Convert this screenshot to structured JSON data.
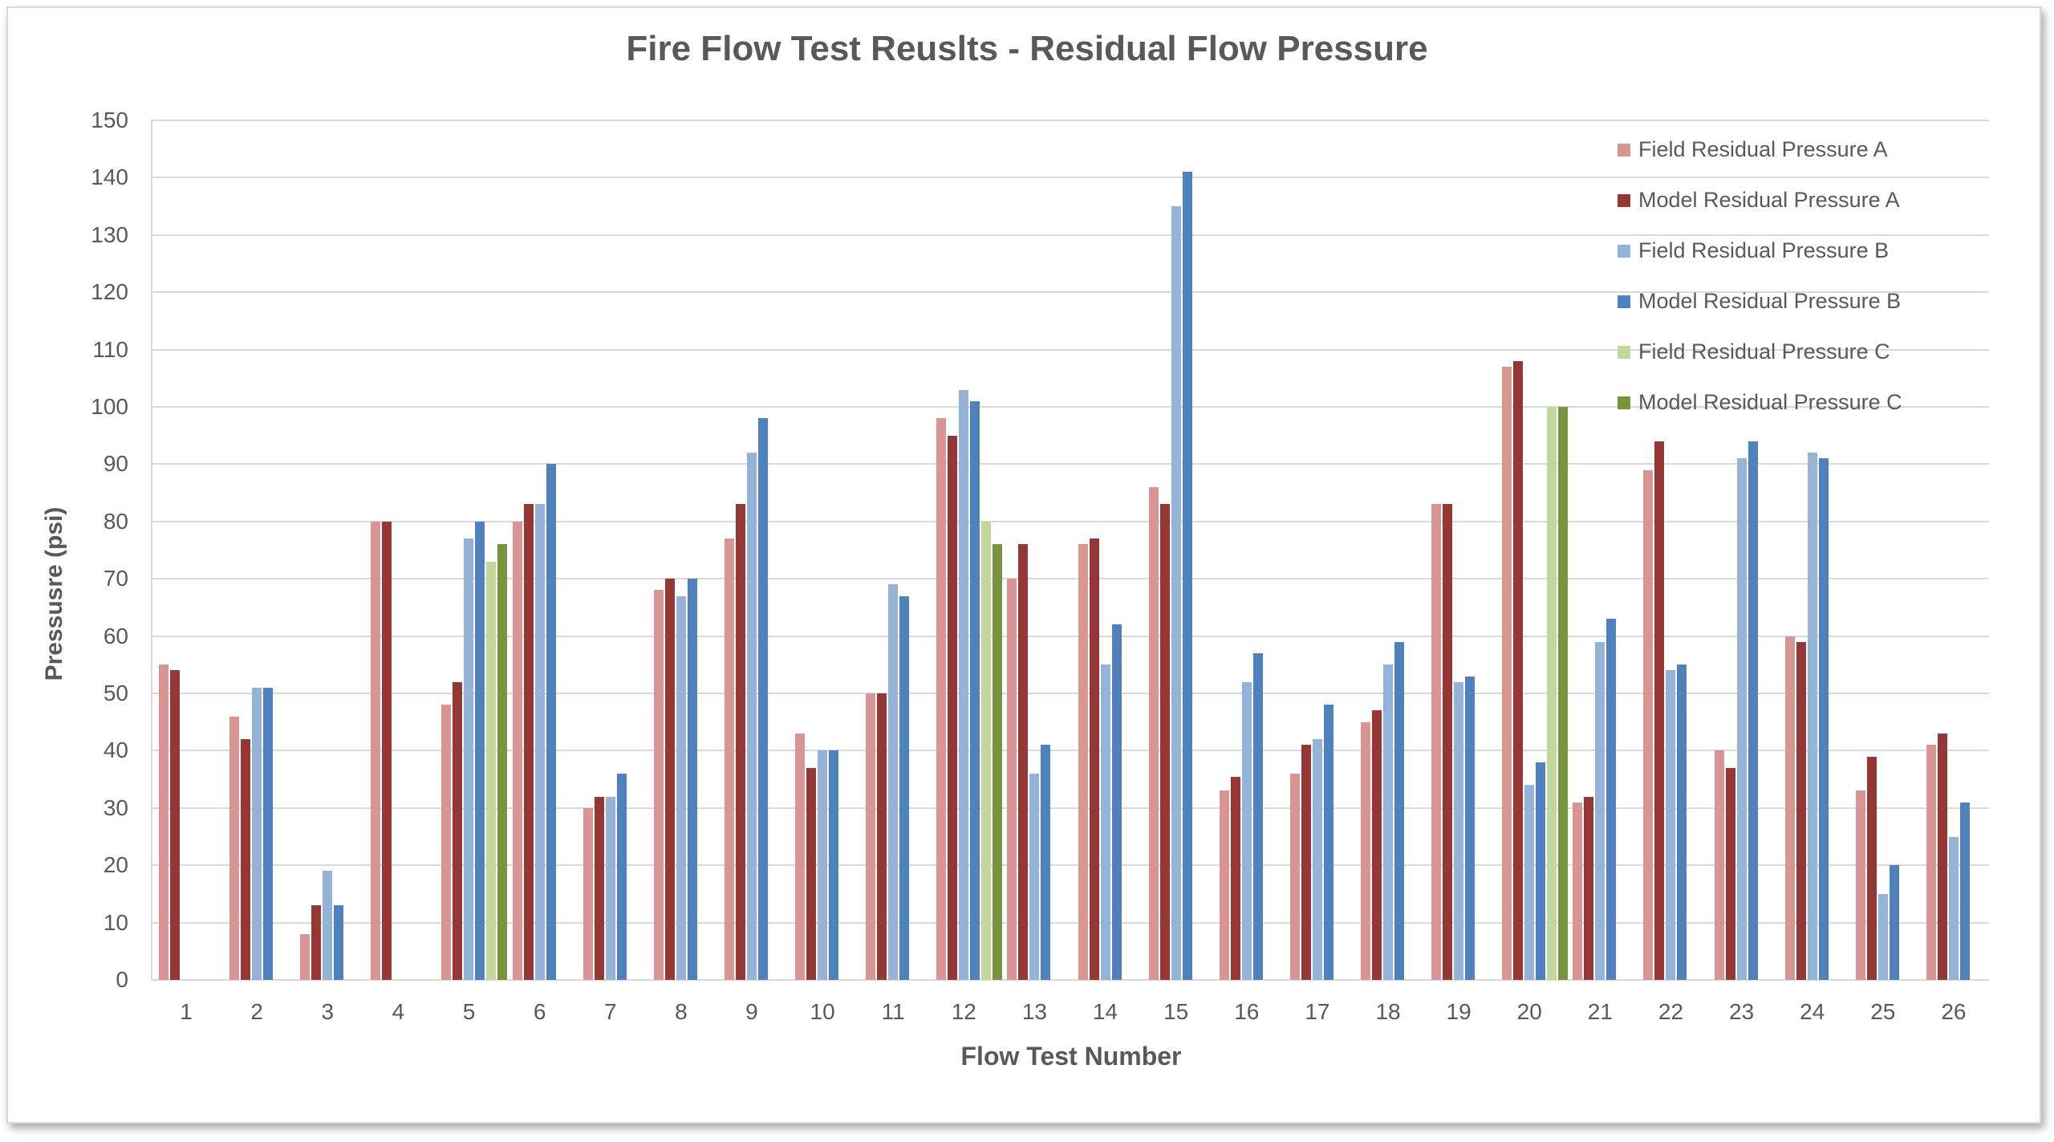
{
  "chart_data": {
    "type": "bar",
    "title": "Fire Flow Test Reuslts - Residual Flow Pressure",
    "xlabel": "Flow Test Number",
    "ylabel": "Pressusre (psi)",
    "ylim": [
      0,
      150
    ],
    "yticks": [
      0,
      10,
      20,
      30,
      40,
      50,
      60,
      70,
      80,
      90,
      100,
      110,
      120,
      130,
      140,
      150
    ],
    "grid": true,
    "legend_position": "top-right (inside plot)",
    "categories": [
      "1",
      "2",
      "3",
      "4",
      "5",
      "6",
      "7",
      "8",
      "9",
      "10",
      "11",
      "12",
      "13",
      "14",
      "15",
      "16",
      "17",
      "18",
      "19",
      "20",
      "21",
      "22",
      "23",
      "24",
      "25",
      "26"
    ],
    "series": [
      {
        "name": "Field Residual Pressure A",
        "color": "#d99594",
        "values": [
          55,
          46,
          8,
          80,
          48,
          80,
          30,
          68,
          77,
          43,
          50,
          98,
          70,
          76,
          86,
          33,
          36,
          45,
          83,
          107,
          31,
          89,
          40,
          60,
          33,
          41
        ]
      },
      {
        "name": "Model Residual Pressure A",
        "color": "#953735",
        "values": [
          54,
          42,
          13,
          80,
          52,
          83,
          32,
          70,
          83,
          37,
          50,
          95,
          76,
          77,
          83,
          35.5,
          41,
          47,
          83,
          108,
          32,
          94,
          37,
          59,
          39,
          43
        ]
      },
      {
        "name": "Field Residual Pressure B",
        "color": "#95b3d7",
        "values": [
          null,
          51,
          19,
          null,
          77,
          83,
          32,
          67,
          92,
          40,
          69,
          103,
          36,
          55,
          135,
          52,
          42,
          55,
          52,
          34,
          59,
          54,
          91,
          92,
          15,
          25
        ]
      },
      {
        "name": "Model Residual Pressure B",
        "color": "#4f81bd",
        "values": [
          null,
          51,
          13,
          null,
          80,
          90,
          36,
          70,
          98,
          40,
          67,
          101,
          41,
          62,
          141,
          57,
          48,
          59,
          53,
          38,
          63,
          55,
          94,
          91,
          20,
          31
        ]
      },
      {
        "name": "Field Residual Pressure C",
        "color": "#c3d69b",
        "values": [
          null,
          null,
          null,
          null,
          73,
          null,
          null,
          null,
          null,
          null,
          null,
          80,
          null,
          null,
          null,
          null,
          null,
          null,
          null,
          100,
          null,
          null,
          null,
          null,
          null,
          null
        ]
      },
      {
        "name": "Model Residual Pressure C",
        "color": "#77933c",
        "values": [
          null,
          null,
          null,
          null,
          76,
          null,
          null,
          null,
          null,
          null,
          null,
          76,
          null,
          null,
          null,
          null,
          null,
          null,
          null,
          100,
          null,
          null,
          null,
          null,
          null,
          null
        ]
      }
    ]
  }
}
